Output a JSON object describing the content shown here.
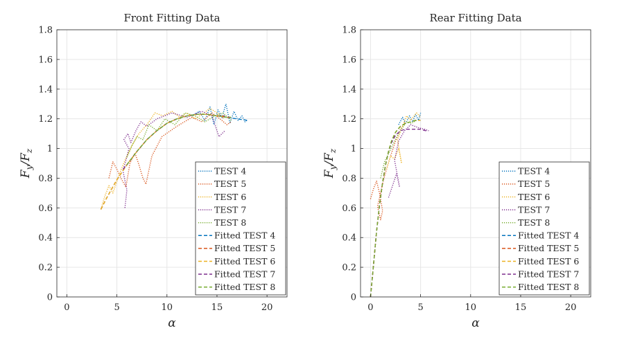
{
  "chart_data": [
    {
      "type": "line",
      "title": "Front Fitting Data",
      "xlabel": "α",
      "ylabel": "F_y/F_z",
      "xlim": [
        -1,
        22
      ],
      "ylim": [
        0,
        1.8
      ],
      "xticks": [
        0,
        5,
        10,
        15,
        20
      ],
      "xtick_labels": [
        "0",
        "5",
        "10",
        "15",
        "20"
      ],
      "yticks": [
        0,
        0.2,
        0.4,
        0.6,
        0.8,
        1,
        1.2,
        1.4,
        1.6,
        1.8
      ],
      "ytick_labels": [
        "0",
        "0.2",
        "0.4",
        "0.6",
        "0.8",
        "1",
        "1.2",
        "1.4",
        "1.6",
        "1.8"
      ],
      "grid": true,
      "legend_position": "bottom-right",
      "series": [
        {
          "name": "TEST 4",
          "style": "dotted",
          "color": "#0072BD",
          "x": [
            12.5,
            13.2,
            13.8,
            14.3,
            14.7,
            15.1,
            15.5,
            15.9,
            16.3,
            16.7,
            17.1,
            17.5,
            17.8,
            18.0
          ],
          "y": [
            1.22,
            1.25,
            1.19,
            1.28,
            1.16,
            1.26,
            1.21,
            1.3,
            1.17,
            1.25,
            1.19,
            1.22,
            1.18,
            1.19
          ]
        },
        {
          "name": "TEST 5",
          "style": "dotted",
          "color": "#D95319",
          "x": [
            4.2,
            4.6,
            5.0,
            5.4,
            5.9,
            6.3,
            6.8,
            7.2,
            7.6,
            7.9,
            8.5,
            9.5,
            11.0,
            12.5,
            13.5,
            14.5,
            15.3,
            16.0,
            16.4
          ],
          "y": [
            0.8,
            0.91,
            0.86,
            0.8,
            0.74,
            0.9,
            0.97,
            0.89,
            0.8,
            0.76,
            0.95,
            1.08,
            1.15,
            1.21,
            1.18,
            1.24,
            1.2,
            1.16,
            1.18
          ]
        },
        {
          "name": "TEST 6",
          "style": "dotted",
          "color": "#EDB120",
          "x": [
            3.4,
            3.8,
            4.2,
            4.6,
            5.2,
            5.8,
            6.5,
            7.2,
            8.0,
            8.8,
            9.6,
            10.5,
            11.3,
            12.0,
            12.8,
            13.5,
            14.3,
            15.0,
            15.7
          ],
          "y": [
            0.59,
            0.68,
            0.75,
            0.7,
            0.82,
            0.92,
            1.02,
            1.1,
            1.16,
            1.24,
            1.22,
            1.25,
            1.21,
            1.24,
            1.2,
            1.23,
            1.27,
            1.24,
            1.2
          ]
        },
        {
          "name": "TEST 7",
          "style": "dotted",
          "color": "#7E2F8E",
          "x": [
            5.8,
            6.0,
            5.6,
            5.9,
            6.2,
            5.7,
            6.1,
            6.4,
            6.9,
            7.4,
            8.0,
            9.0,
            10.5,
            12.0,
            13.5,
            14.5,
            15.2,
            15.8
          ],
          "y": [
            0.6,
            0.72,
            0.85,
            0.92,
            1.0,
            1.06,
            1.1,
            1.04,
            1.12,
            1.18,
            1.15,
            1.2,
            1.24,
            1.21,
            1.25,
            1.22,
            1.08,
            1.12
          ]
        },
        {
          "name": "TEST 8",
          "style": "dotted",
          "color": "#77AC30",
          "x": [
            6.0,
            6.5,
            7.0,
            7.6,
            8.2,
            9.0,
            9.8,
            10.8,
            11.8,
            12.8,
            13.8,
            14.8,
            15.6,
            16.4
          ],
          "y": [
            0.94,
            1.02,
            1.08,
            1.06,
            1.16,
            1.12,
            1.2,
            1.16,
            1.24,
            1.22,
            1.18,
            1.22,
            1.24,
            1.19
          ]
        },
        {
          "name": "Fitted TEST 4",
          "style": "dashed",
          "color": "#0072BD",
          "x": [
            3.4,
            4,
            5,
            6,
            7,
            8,
            9,
            10,
            11,
            12,
            13,
            14,
            15,
            16,
            17,
            18
          ],
          "y": [
            0.59,
            0.67,
            0.79,
            0.89,
            0.98,
            1.06,
            1.12,
            1.17,
            1.2,
            1.22,
            1.23,
            1.23,
            1.22,
            1.21,
            1.2,
            1.19
          ]
        },
        {
          "name": "Fitted TEST 5",
          "style": "dashed",
          "color": "#D95319",
          "x": [
            3.4,
            4,
            5,
            6,
            7,
            8,
            9,
            10,
            11,
            12,
            13,
            14,
            15,
            16,
            16.4
          ],
          "y": [
            0.59,
            0.67,
            0.79,
            0.89,
            0.98,
            1.06,
            1.12,
            1.17,
            1.2,
            1.22,
            1.23,
            1.23,
            1.22,
            1.21,
            1.21
          ]
        },
        {
          "name": "Fitted TEST 6",
          "style": "dashed",
          "color": "#EDB120",
          "x": [
            3.4,
            4,
            5,
            6,
            7,
            8,
            9,
            10,
            11,
            12,
            13,
            14,
            15,
            15.7
          ],
          "y": [
            0.59,
            0.67,
            0.79,
            0.89,
            0.98,
            1.06,
            1.12,
            1.17,
            1.2,
            1.22,
            1.23,
            1.23,
            1.22,
            1.22
          ]
        },
        {
          "name": "Fitted TEST 7",
          "style": "dashed",
          "color": "#7E2F8E",
          "x": [
            5.6,
            6,
            7,
            8,
            9,
            10,
            11,
            12,
            13,
            14,
            15,
            15.8
          ],
          "y": [
            0.86,
            0.89,
            0.98,
            1.06,
            1.12,
            1.17,
            1.2,
            1.22,
            1.23,
            1.23,
            1.22,
            1.22
          ]
        },
        {
          "name": "Fitted TEST 8",
          "style": "dashed",
          "color": "#77AC30",
          "x": [
            6.0,
            7,
            8,
            9,
            10,
            11,
            12,
            13,
            14,
            15,
            16,
            16.4
          ],
          "y": [
            0.89,
            0.98,
            1.06,
            1.12,
            1.17,
            1.2,
            1.22,
            1.23,
            1.23,
            1.22,
            1.21,
            1.21
          ]
        }
      ]
    },
    {
      "type": "line",
      "title": "Rear Fitting Data",
      "xlabel": "α",
      "ylabel": "F_y/F_z",
      "xlim": [
        -1,
        22
      ],
      "ylim": [
        0,
        1.8
      ],
      "xticks": [
        0,
        5,
        10,
        15,
        20
      ],
      "xtick_labels": [
        "0",
        "5",
        "10",
        "15",
        "20"
      ],
      "yticks": [
        0,
        0.2,
        0.4,
        0.6,
        0.8,
        1,
        1.2,
        1.4,
        1.6,
        1.8
      ],
      "ytick_labels": [
        "0",
        "0.2",
        "0.4",
        "0.6",
        "0.8",
        "1",
        "1.2",
        "1.4",
        "1.6",
        "1.8"
      ],
      "grid": true,
      "legend_position": "bottom-right",
      "series": [
        {
          "name": "TEST 4",
          "style": "dotted",
          "color": "#0072BD",
          "x": [
            2.8,
            3.2,
            3.5,
            3.9,
            4.2,
            4.5,
            4.8,
            5.0
          ],
          "y": [
            1.16,
            1.21,
            1.17,
            1.22,
            1.18,
            1.23,
            1.19,
            1.24
          ]
        },
        {
          "name": "TEST 5",
          "style": "dotted",
          "color": "#D95319",
          "x": [
            0.0,
            0.3,
            0.6,
            0.9,
            1.2,
            1.0,
            0.7,
            1.3,
            1.6,
            2.0,
            2.5,
            3.0,
            3.5
          ],
          "y": [
            0.66,
            0.73,
            0.78,
            0.7,
            0.58,
            0.52,
            0.61,
            0.79,
            0.86,
            0.95,
            1.05,
            1.13,
            1.18
          ]
        },
        {
          "name": "TEST 6",
          "style": "dotted",
          "color": "#EDB120",
          "x": [
            1.6,
            2.0,
            2.4,
            2.8,
            3.1,
            2.7,
            3.2,
            3.6,
            4.0,
            4.6,
            5.0
          ],
          "y": [
            0.86,
            0.95,
            0.93,
            1.0,
            0.9,
            1.06,
            1.15,
            1.22,
            1.19,
            1.24,
            1.21
          ]
        },
        {
          "name": "TEST 7",
          "style": "dotted",
          "color": "#7E2F8E",
          "x": [
            1.8,
            2.2,
            2.6,
            2.9,
            2.4,
            2.8,
            3.4,
            4.0,
            4.8,
            5.4,
            5.8
          ],
          "y": [
            0.67,
            0.75,
            0.83,
            0.74,
            0.92,
            1.05,
            1.12,
            1.16,
            1.14,
            1.13,
            1.12
          ]
        },
        {
          "name": "TEST 8",
          "style": "dotted",
          "color": "#77AC30",
          "x": [
            1.0,
            1.4,
            1.9,
            2.4,
            2.8,
            3.2,
            3.6,
            4.1,
            4.6
          ],
          "y": [
            0.8,
            0.91,
            0.98,
            1.05,
            1.1,
            1.14,
            1.18,
            1.17,
            1.19
          ]
        },
        {
          "name": "Fitted TEST 4",
          "style": "dashed",
          "color": "#0072BD",
          "x": [
            0,
            0.3,
            0.6,
            0.9,
            1.2,
            1.5,
            1.8,
            2.1,
            2.5,
            3.0,
            3.5,
            4.0,
            4.5,
            5.0
          ],
          "y": [
            0,
            0.22,
            0.44,
            0.62,
            0.77,
            0.89,
            0.98,
            1.05,
            1.11,
            1.15,
            1.17,
            1.18,
            1.19,
            1.19
          ]
        },
        {
          "name": "Fitted TEST 5",
          "style": "dashed",
          "color": "#D95319",
          "x": [
            0,
            0.3,
            0.6,
            0.9,
            1.2,
            1.5,
            1.8,
            2.1,
            2.5,
            3.0,
            3.5
          ],
          "y": [
            0,
            0.22,
            0.44,
            0.62,
            0.77,
            0.89,
            0.98,
            1.05,
            1.11,
            1.15,
            1.17
          ]
        },
        {
          "name": "Fitted TEST 6",
          "style": "dashed",
          "color": "#EDB120",
          "x": [
            0,
            0.3,
            0.6,
            0.9,
            1.2,
            1.5,
            1.8,
            2.1,
            2.5,
            3.0,
            3.5,
            4.0,
            4.5,
            5.0
          ],
          "y": [
            0,
            0.22,
            0.44,
            0.62,
            0.77,
            0.89,
            0.98,
            1.05,
            1.11,
            1.15,
            1.17,
            1.18,
            1.19,
            1.19
          ]
        },
        {
          "name": "Fitted TEST 7",
          "style": "dashed",
          "color": "#7E2F8E",
          "x": [
            0,
            0.3,
            0.6,
            0.9,
            1.2,
            1.5,
            1.8,
            2.1,
            2.5,
            3.0,
            3.5,
            4.0,
            4.5,
            5.0,
            5.5,
            5.8
          ],
          "y": [
            0,
            0.22,
            0.44,
            0.62,
            0.77,
            0.89,
            0.98,
            1.04,
            1.09,
            1.12,
            1.13,
            1.13,
            1.13,
            1.13,
            1.12,
            1.12
          ]
        },
        {
          "name": "Fitted TEST 8",
          "style": "dashed",
          "color": "#77AC30",
          "x": [
            0,
            0.3,
            0.6,
            0.9,
            1.2,
            1.5,
            1.8,
            2.1,
            2.5,
            3.0,
            3.5,
            4.0,
            4.6
          ],
          "y": [
            0,
            0.22,
            0.44,
            0.62,
            0.77,
            0.89,
            0.98,
            1.05,
            1.11,
            1.15,
            1.17,
            1.18,
            1.19
          ]
        }
      ]
    }
  ]
}
